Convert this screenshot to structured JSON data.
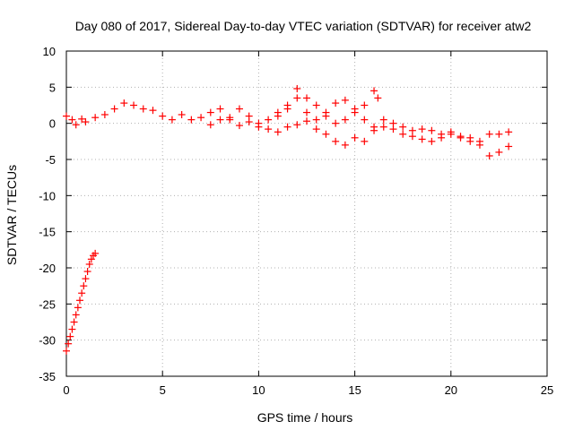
{
  "chart_data": {
    "type": "scatter",
    "title": "Day 080 of 2017, Sidereal Day-to-day VTEC variation (SDTVAR) for receiver atw2",
    "xlabel": "GPS time / hours",
    "ylabel": "SDTVAR / TECUs",
    "xlim": [
      0,
      25
    ],
    "ylim": [
      -35,
      10
    ],
    "xticks": [
      "0",
      "5",
      "10",
      "15",
      "20",
      "25"
    ],
    "yticks": [
      "10",
      "5",
      "0",
      "-5",
      "-10",
      "-15",
      "-20",
      "-25",
      "-30",
      "-35"
    ],
    "grid": true,
    "marker": "+",
    "series": [
      {
        "name": "SDTVAR",
        "color": "#ff0000",
        "x": [
          0.0,
          0.1,
          0.2,
          0.3,
          0.4,
          0.5,
          0.6,
          0.7,
          0.8,
          0.9,
          1.0,
          1.1,
          1.2,
          1.3,
          1.4,
          1.5,
          0.0,
          0.3,
          0.5,
          0.8,
          1.0,
          1.5,
          2.0,
          2.5,
          3.0,
          3.5,
          4.0,
          4.5,
          5.0,
          5.5,
          6.0,
          6.5,
          7.0,
          7.5,
          8.0,
          8.5,
          9.0,
          9.5,
          10.0,
          10.5,
          11.0,
          11.5,
          12.0,
          12.5,
          13.0,
          13.5,
          14.0,
          14.5,
          15.0,
          15.5,
          16.0,
          16.5,
          17.0,
          17.5,
          18.0,
          18.5,
          19.0,
          19.5,
          20.0,
          20.5,
          21.0,
          21.5,
          22.0,
          22.5,
          23.0,
          7.5,
          8.0,
          8.5,
          9.0,
          9.5,
          10.0,
          10.5,
          11.0,
          11.5,
          12.0,
          12.5,
          13.0,
          13.5,
          14.0,
          14.5,
          15.0,
          15.5,
          16.0,
          16.5,
          17.0,
          17.5,
          18.0,
          18.5,
          19.0,
          19.5,
          20.0,
          20.5,
          21.0,
          21.5,
          22.0,
          22.5,
          23.0,
          11.0,
          11.5,
          12.0,
          12.5,
          13.0,
          13.5,
          14.0,
          14.5,
          15.0,
          15.5,
          16.0,
          16.2
        ],
        "y": [
          -31.5,
          -30.5,
          -29.5,
          -28.5,
          -27.5,
          -26.5,
          -25.5,
          -24.5,
          -23.5,
          -22.5,
          -21.5,
          -20.5,
          -19.5,
          -18.8,
          -18.3,
          -18.0,
          1.0,
          0.5,
          -0.2,
          0.6,
          0.2,
          0.8,
          1.2,
          2.0,
          2.8,
          2.5,
          2.0,
          1.8,
          1.0,
          0.5,
          1.2,
          0.5,
          0.8,
          1.5,
          2.0,
          0.5,
          2.0,
          1.0,
          0.0,
          0.5,
          1.0,
          2.0,
          3.5,
          1.5,
          0.5,
          1.0,
          0.0,
          0.5,
          1.5,
          0.5,
          -0.5,
          0.5,
          0.0,
          -0.5,
          -1.0,
          -0.8,
          -1.0,
          -1.5,
          -1.2,
          -1.8,
          -2.0,
          -2.5,
          -1.5,
          -1.5,
          -1.2,
          -0.2,
          0.5,
          0.8,
          -0.3,
          0.2,
          -0.5,
          -0.8,
          -1.2,
          -0.5,
          -0.2,
          0.3,
          -0.8,
          -1.5,
          -2.5,
          -3.0,
          -2.0,
          -2.5,
          -1.0,
          -0.5,
          -0.8,
          -1.5,
          -1.8,
          -2.2,
          -2.5,
          -2.0,
          -1.5,
          -2.0,
          -2.5,
          -3.0,
          -4.5,
          -4.0,
          -3.2,
          1.5,
          2.5,
          4.8,
          3.5,
          2.5,
          1.5,
          2.8,
          3.2,
          2.0,
          2.5,
          4.5,
          3.5
        ]
      }
    ]
  }
}
